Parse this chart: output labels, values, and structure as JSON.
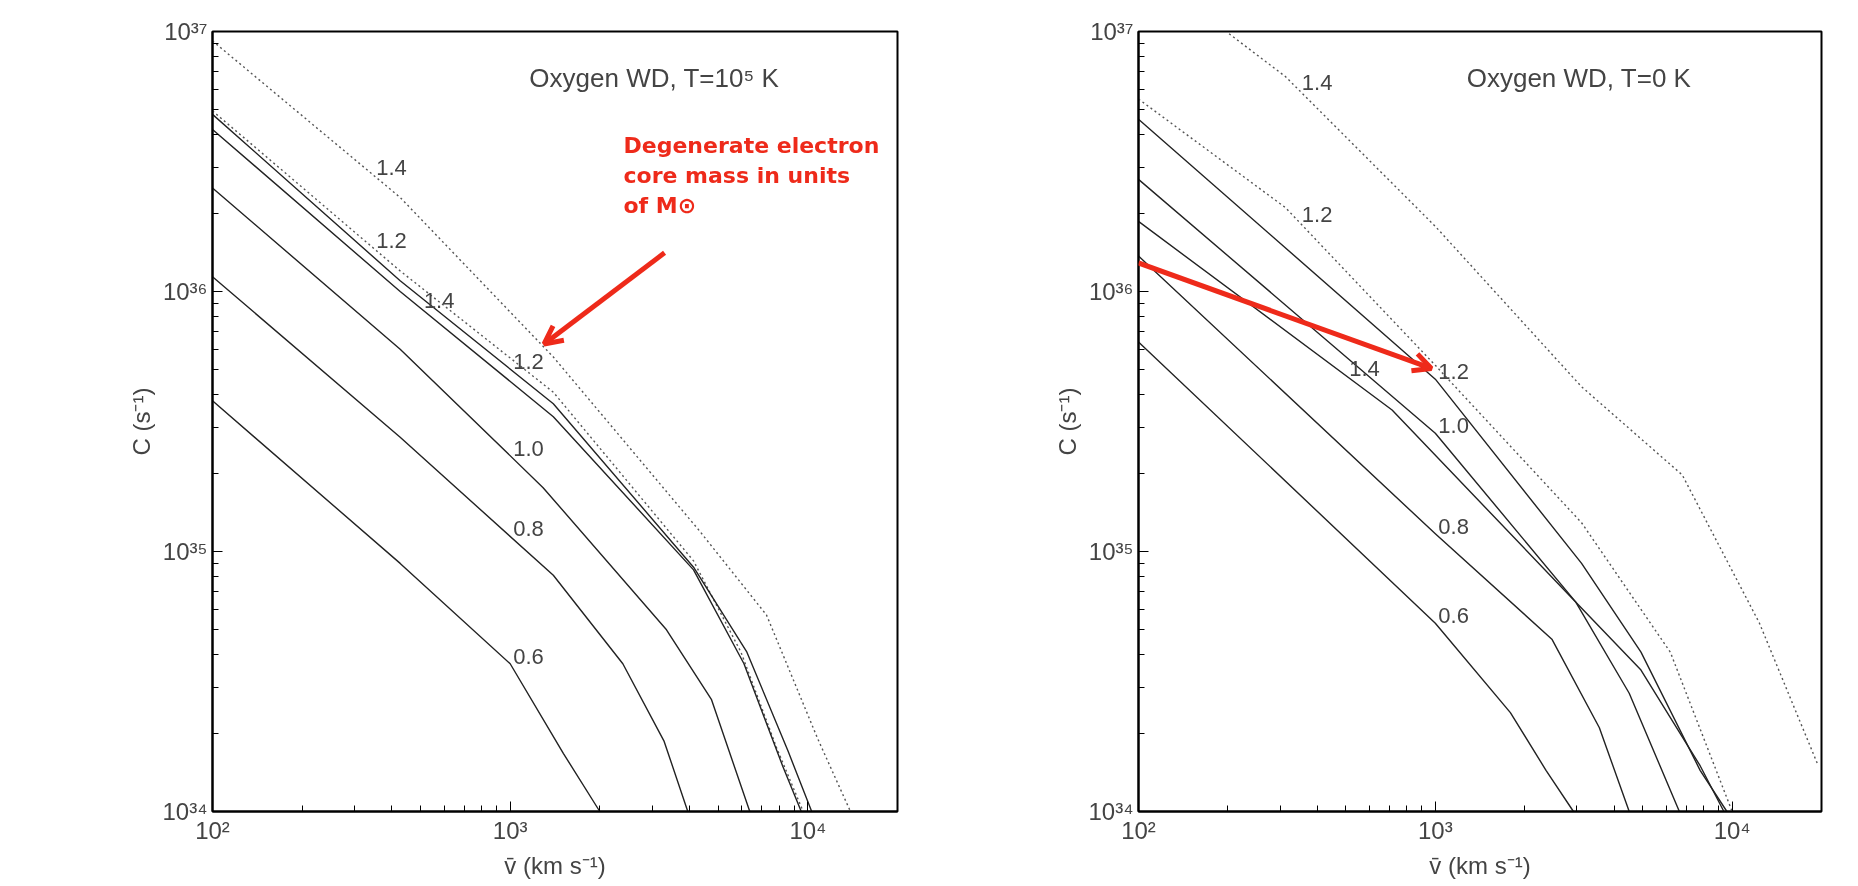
{
  "chart_data": [
    {
      "type": "line",
      "title": "Oxygen WD, T=10⁵ K",
      "xlabel": "v̄ (km s⁻¹)",
      "ylabel": "C (s⁻¹)",
      "log": "xy",
      "grid": false,
      "xlim": [
        100,
        20000
      ],
      "ylim": [
        1e+34,
        1e+37
      ],
      "xticks": [
        {
          "value": 100,
          "label": "10²"
        },
        {
          "value": 1000,
          "label": "10³"
        },
        {
          "value": 10000,
          "label": "10⁴"
        }
      ],
      "yticks": [
        {
          "value": 1e+34,
          "label": "10³⁴"
        },
        {
          "value": 1e+35,
          "label": "10³⁵"
        },
        {
          "value": 1e+36,
          "label": "10³⁶"
        },
        {
          "value": 1e+37,
          "label": "10³⁷"
        }
      ],
      "series": [
        {
          "name": "1.4",
          "color": "#555555",
          "line_style": "dotted",
          "x": [
            100,
            427,
            1396,
            4325,
            7260,
            10800,
            13900
          ],
          "values": [
            9.2e+36,
            2.3e+36,
            5.6e+35,
            1.2e+35,
            5.7e+34,
            1.9e+34,
            1e+34
          ]
        },
        {
          "name": "1.2",
          "color": "#555555",
          "line_style": "dotted",
          "x": [
            100,
            427,
            1396,
            4130,
            5960,
            7850,
            9640
          ],
          "values": [
            4.95e+36,
            1.2e+36,
            4.1e+35,
            9.2e+34,
            4.1e+34,
            1.76e+34,
            1e+34
          ]
        },
        {
          "name": "1.2",
          "color": "#222222",
          "line_style": "solid",
          "x": [
            100,
            427,
            1396,
            4130,
            6240,
            8590,
            10300
          ],
          "values": [
            4.8e+36,
            1.1e+36,
            3.7e+35,
            8.7e+34,
            4.1e+34,
            1.7e+34,
            1e+34
          ]
        },
        {
          "name": "1.4",
          "color": "#222222",
          "line_style": "solid",
          "x": [
            100,
            427,
            1396,
            4130,
            6100,
            8220,
            9500
          ],
          "values": [
            4.2e+36,
            1e+36,
            3.3e+35,
            8.5e+34,
            3.7e+34,
            1.5e+34,
            1e+34
          ]
        },
        {
          "name": "1.0",
          "color": "#222222",
          "line_style": "solid",
          "x": [
            100,
            427,
            1290,
            3350,
            4740,
            6380
          ],
          "values": [
            2.5e+36,
            6e+35,
            1.76e+35,
            5e+34,
            2.7e+34,
            1e+34
          ]
        },
        {
          "name": "0.8",
          "color": "#222222",
          "line_style": "solid",
          "x": [
            100,
            427,
            1396,
            2390,
            3290,
            3950
          ],
          "values": [
            1.14e+36,
            2.75e+35,
            8.1e+34,
            3.7e+34,
            1.86e+34,
            1e+34
          ]
        },
        {
          "name": "0.6",
          "color": "#222222",
          "line_style": "solid",
          "x": [
            100,
            427,
            1000,
            1510,
            2000
          ],
          "values": [
            3.8e+35,
            9e+34,
            3.7e+34,
            1.67e+34,
            1e+34
          ]
        }
      ],
      "annotations": [
        "Degenerate electron core mass in units of M⊙"
      ]
    },
    {
      "type": "line",
      "title": "Oxygen WD, T=0 K",
      "xlabel": "v̄ (km s⁻¹)",
      "ylabel": "C (s⁻¹)",
      "log": "xy",
      "grid": false,
      "xlim": [
        100,
        20000
      ],
      "ylim": [
        1e+34,
        1e+37
      ],
      "xticks": [
        {
          "value": 100,
          "label": "10²"
        },
        {
          "value": 1000,
          "label": "10³"
        },
        {
          "value": 10000,
          "label": "10⁴"
        }
      ],
      "yticks": [
        {
          "value": 1e+34,
          "label": "10³⁴"
        },
        {
          "value": 1e+35,
          "label": "10³⁵"
        },
        {
          "value": 1e+36,
          "label": "10³⁶"
        },
        {
          "value": 1e+37,
          "label": "10³⁷"
        }
      ],
      "series": [
        {
          "name": "1.4",
          "color": "#555555",
          "line_style": "dotted",
          "x": [
            202,
            313,
            1000,
            3110,
            6790,
            12360,
            19500
          ],
          "values": [
            9.8e+36,
            6.7e+36,
            1.78e+36,
            4.3e+35,
            1.97e+35,
            5.3e+34,
            1.5e+34
          ]
        },
        {
          "name": "1.2",
          "color": "#555555",
          "line_style": "dotted",
          "x": [
            100,
            313,
            1000,
            3110,
            6190,
            10000
          ],
          "values": [
            5.5e+36,
            2.1e+36,
            5.2e+35,
            1.29e+35,
            4.1e+34,
            1e+34
          ]
        },
        {
          "name": "1.2",
          "color": "#222222",
          "line_style": "solid",
          "x": [
            100,
            1000,
            3110,
            4930,
            7800,
            9600
          ],
          "values": [
            4.6e+36,
            4.6e+35,
            9e+34,
            4.1e+34,
            1.44e+34,
            1e+34
          ]
        },
        {
          "name": "1.0",
          "color": "#222222",
          "line_style": "solid",
          "x": [
            100,
            1000,
            2970,
            4500,
            6640
          ],
          "values": [
            2.7e+36,
            2.85e+35,
            6.4e+34,
            2.85e+34,
            1e+34
          ]
        },
        {
          "name": "1.4",
          "color": "#222222",
          "line_style": "solid",
          "x": [
            100,
            715,
            2970,
            4930,
            7800,
            9380
          ],
          "values": [
            1.86e+36,
            3.5e+35,
            6.4e+34,
            3.5e+34,
            1.5e+34,
            1e+34
          ]
        },
        {
          "name": "0.8",
          "color": "#222222",
          "line_style": "solid",
          "x": [
            100,
            1000,
            2470,
            3570,
            4500
          ],
          "values": [
            1.37e+36,
            1.17e+35,
            4.6e+34,
            2.1e+34,
            1e+34
          ]
        },
        {
          "name": "0.6",
          "color": "#222222",
          "line_style": "solid",
          "x": [
            100,
            1000,
            1790,
            2360,
            2920
          ],
          "values": [
            6.4e+35,
            5.3e+34,
            2.4e+34,
            1.44e+34,
            1e+34
          ]
        }
      ]
    }
  ]
}
